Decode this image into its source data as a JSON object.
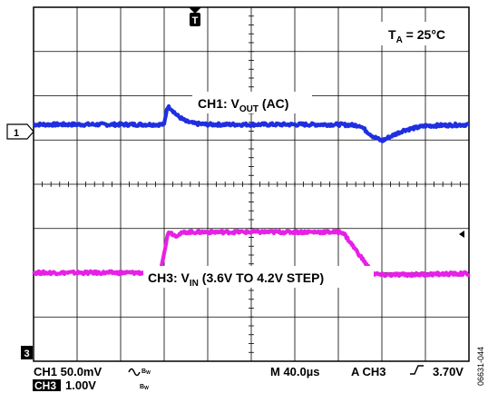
{
  "chart_data": {
    "type": "line",
    "title": "",
    "xlabel": "",
    "ylabel": "",
    "x_divisions": 10,
    "y_divisions": 8,
    "grid": true,
    "series": [
      {
        "name_parts": [
          "CH1: V",
          "OUT",
          " (AC)"
        ],
        "color": "#1f2fe0",
        "x_div": [
          0,
          3.0,
          3.07,
          3.15,
          3.3,
          3.5,
          3.7,
          4.0,
          5.0,
          6.0,
          7.0,
          7.5,
          7.6,
          7.8,
          8.0,
          8.2,
          8.5,
          9.0,
          10.0
        ],
        "y_div": [
          1.35,
          1.35,
          1.75,
          1.72,
          1.55,
          1.42,
          1.37,
          1.35,
          1.35,
          1.35,
          1.35,
          1.33,
          1.24,
          1.08,
          0.98,
          1.08,
          1.22,
          1.32,
          1.35
        ]
      },
      {
        "name_parts": [
          "CH3: V",
          "IN",
          " (3.6V TO 4.2V STEP)"
        ],
        "color": "#e620e6",
        "x_div": [
          0,
          2.9,
          3.1,
          3.25,
          3.5,
          10.0
        ],
        "y_div": [
          -2.0,
          -2.0,
          -1.06,
          -1.16,
          -1.08,
          -1.08
        ],
        "x_div_tail": [
          7.1,
          7.8,
          8.0,
          10.0
        ],
        "y_div_tail": [
          -1.08,
          -2.02,
          -2.05,
          -2.02
        ]
      }
    ],
    "annotations": {
      "temperature": [
        "T",
        "A",
        " = 25°C"
      ],
      "ch1_marker": "1",
      "ch3_marker": "3",
      "trigger_marker": "T",
      "side_label": "06631-044"
    },
    "settings": {
      "ch1": "CH1  50.0mV",
      "ch1_bw": "B",
      "ch1_bw_sub": "W",
      "ch3_label": "CH3",
      "ch3_volts": "1.00V",
      "ch3_bw": "B",
      "ch3_bw_sub": "W",
      "timebase": "M 40.0µs",
      "trigger_source": "A  CH3",
      "trigger_level": "3.70V"
    }
  }
}
